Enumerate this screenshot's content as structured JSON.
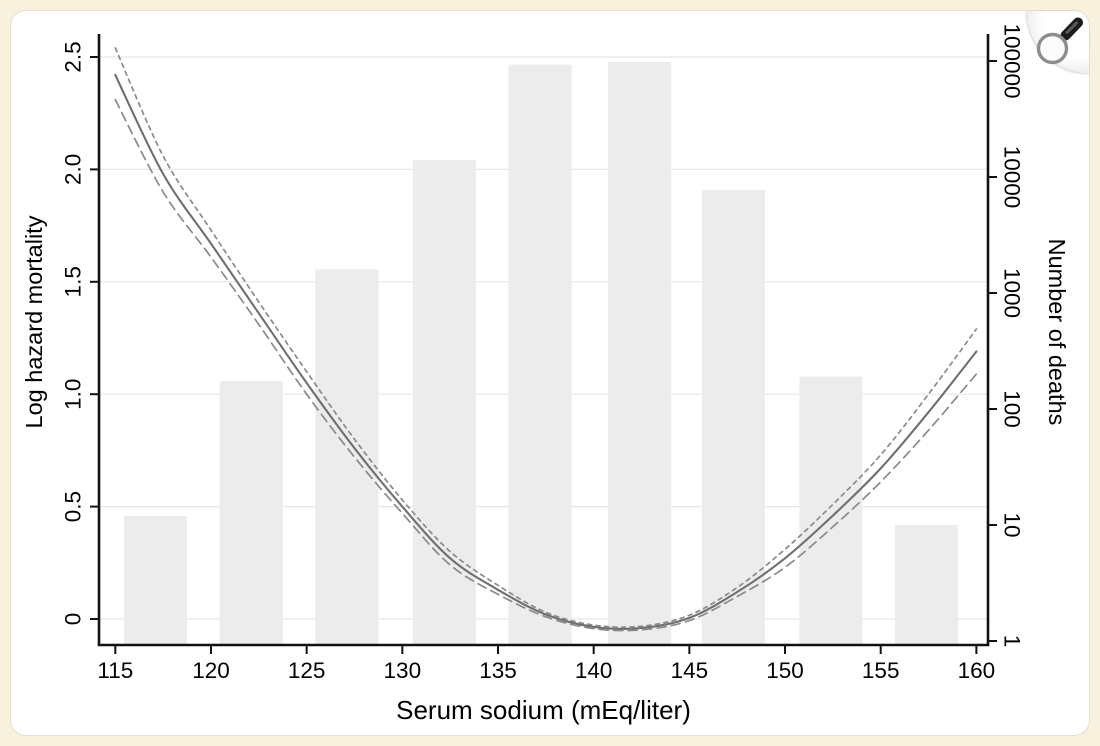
{
  "page": {
    "background": "#f8f1dd",
    "card_background": "#ffffff"
  },
  "magnifier_button": {
    "icon": "magnifying-glass"
  },
  "chart_data": {
    "type": "line",
    "subtype": "spline-with-confidence-bands-and-log-histogram",
    "title": "",
    "xlabel": "Serum sodium (mEq/liter)",
    "x_axis": {
      "tick_values": [
        115,
        120,
        125,
        130,
        135,
        140,
        145,
        150,
        155,
        160
      ],
      "tick_labels": [
        "115",
        "120",
        "125",
        "130",
        "135",
        "140",
        "145",
        "150",
        "155",
        "160"
      ],
      "range": [
        114.1,
        160.6
      ],
      "grid": false
    },
    "left_axis": {
      "label": "Log hazard mortality",
      "tick_values": [
        0,
        0.5,
        1.0,
        1.5,
        2.0,
        2.5
      ],
      "tick_labels": [
        "0",
        "0.5",
        "1.0",
        "1.5",
        "2.0",
        "2.5"
      ],
      "range": [
        -0.12,
        2.62
      ],
      "grid": true
    },
    "right_axis": {
      "label": "Number of deaths",
      "scale": "log",
      "tick_values": [
        1,
        10,
        100,
        1000,
        10000,
        100000
      ],
      "tick_labels": [
        "1",
        "10",
        "100",
        "1000",
        "10000",
        "100000"
      ]
    },
    "histogram": {
      "axis": "right",
      "fill_color": "#ececec",
      "bar_width_units": 3.3,
      "bin_centers": [
        117.1,
        122.1,
        127.1,
        132.2,
        137.2,
        142.4,
        147.3,
        152.4,
        157.4
      ],
      "deaths": [
        12,
        175,
        1600,
        14000,
        93000,
        98000,
        7700,
        190,
        10
      ]
    },
    "series": [
      {
        "name": "log-hazard-estimate",
        "style": "solid",
        "color": "#6f6f6f",
        "x": [
          115,
          117.5,
          120,
          122.5,
          125,
          127.5,
          130,
          132.5,
          135,
          137.5,
          140,
          142.5,
          145,
          147.5,
          150,
          152.5,
          155,
          157.5,
          160
        ],
        "y": [
          2.42,
          1.98,
          1.67,
          1.36,
          1.05,
          0.76,
          0.5,
          0.27,
          0.13,
          0.02,
          -0.035,
          -0.04,
          0.005,
          0.12,
          0.27,
          0.46,
          0.67,
          0.92,
          1.19
        ]
      },
      {
        "name": "upper-confidence-limit",
        "style": "dashed-short",
        "color": "#8a8a8a",
        "x": [
          115,
          117.5,
          120,
          122.5,
          125,
          127.5,
          130,
          132.5,
          135,
          137.5,
          140,
          142.5,
          145,
          147.5,
          150,
          152.5,
          155,
          157.5,
          160
        ],
        "y": [
          2.54,
          2.06,
          1.73,
          1.41,
          1.1,
          0.8,
          0.53,
          0.3,
          0.15,
          0.03,
          -0.027,
          -0.032,
          0.017,
          0.14,
          0.31,
          0.51,
          0.73,
          1.0,
          1.29
        ]
      },
      {
        "name": "lower-confidence-limit",
        "style": "dashed-long",
        "color": "#8a8a8a",
        "x": [
          115,
          117.5,
          120,
          122.5,
          125,
          127.5,
          130,
          132.5,
          135,
          137.5,
          140,
          142.5,
          145,
          147.5,
          150,
          152.5,
          155,
          157.5,
          160
        ],
        "y": [
          2.31,
          1.9,
          1.61,
          1.31,
          1.0,
          0.72,
          0.47,
          0.24,
          0.11,
          0.01,
          -0.043,
          -0.048,
          -0.007,
          0.1,
          0.23,
          0.41,
          0.61,
          0.84,
          1.09
        ]
      }
    ]
  }
}
